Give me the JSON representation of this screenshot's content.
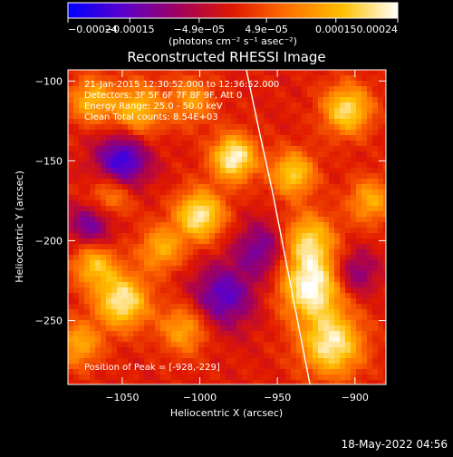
{
  "chart_data": {
    "type": "heatmap",
    "title": "Reconstructed RHESSI Image",
    "xlabel": "Heliocentric X (arcsec)",
    "ylabel": "Heliocentric Y (arcsec)",
    "xlim": [
      -1085,
      -880
    ],
    "ylim": [
      -290,
      -93
    ],
    "x_ticks": [
      -1050,
      -1000,
      -950,
      -900
    ],
    "x_tick_labels": [
      "−1050",
      "−1000",
      "−950",
      "−900"
    ],
    "y_ticks": [
      -100,
      -150,
      -200,
      -250
    ],
    "y_tick_labels": [
      "−100",
      "−150",
      "−200",
      "−250"
    ],
    "colorbar": {
      "range": [
        -0.00024,
        0.00024
      ],
      "tick_values": [
        -0.00024,
        -0.00015,
        -4.9e-05,
        4.9e-05,
        0.00015,
        0.00024
      ],
      "tick_labels": [
        "−0.00024",
        "−0.00015",
        "−4.9e−05",
        "4.9e−05",
        "0.00015",
        "0.00024"
      ],
      "units": "(photons cm⁻² s⁻¹ asec⁻²)",
      "colors": [
        "#0000ff",
        "#5a00cc",
        "#a00060",
        "#e01800",
        "#ff7000",
        "#ffc000",
        "#ffffff"
      ]
    },
    "annotations": [
      "21-Jan-2015 12:30:52.000 to 12:36:52.000",
      "Detectors: 3F 5F 6F 7F 8F 9F, Att 0",
      "Energy Range: 25.0 - 50.0 keV",
      "Clean      Total counts: 8.54E+03"
    ],
    "peak_label": "Position of Peak = [-928,-229]",
    "peak": [
      -928,
      -229
    ],
    "limb_curve": [
      [
        -970,
        -93
      ],
      [
        -962,
        -130
      ],
      [
        -953,
        -170
      ],
      [
        -945,
        -210
      ],
      [
        -937,
        -250
      ],
      [
        -929,
        -290
      ]
    ],
    "sources": [
      {
        "x": -978,
        "y": -148,
        "a": 0.00024,
        "s": 10
      },
      {
        "x": -1000,
        "y": -184,
        "a": 0.00022,
        "s": 11
      },
      {
        "x": -940,
        "y": -158,
        "a": 0.00018,
        "s": 10
      },
      {
        "x": -905,
        "y": -118,
        "a": 0.0002,
        "s": 11
      },
      {
        "x": -928,
        "y": -229,
        "a": 0.00024,
        "s": 14
      },
      {
        "x": -930,
        "y": -200,
        "a": 0.00018,
        "s": 12
      },
      {
        "x": -915,
        "y": -265,
        "a": 0.00022,
        "s": 14
      },
      {
        "x": -1050,
        "y": -238,
        "a": 0.00022,
        "s": 12
      },
      {
        "x": -1068,
        "y": -215,
        "a": 0.00016,
        "s": 10
      },
      {
        "x": -1025,
        "y": -205,
        "a": 0.00014,
        "s": 10
      },
      {
        "x": -1040,
        "y": -118,
        "a": 0.00016,
        "s": 12
      },
      {
        "x": -1070,
        "y": -112,
        "a": 0.00015,
        "s": 10
      },
      {
        "x": -1058,
        "y": -172,
        "a": 0.00012,
        "s": 10
      },
      {
        "x": -1078,
        "y": -265,
        "a": 0.00014,
        "s": 10
      },
      {
        "x": -1010,
        "y": -255,
        "a": 0.00014,
        "s": 11
      },
      {
        "x": -1005,
        "y": -112,
        "a": 0.00012,
        "s": 10
      },
      {
        "x": -890,
        "y": -175,
        "a": 0.00014,
        "s": 10
      },
      {
        "x": -1050,
        "y": -150,
        "a": -0.0002,
        "s": 12
      },
      {
        "x": -1070,
        "y": -190,
        "a": -0.00014,
        "s": 10
      },
      {
        "x": -985,
        "y": -235,
        "a": -0.00016,
        "s": 14
      },
      {
        "x": -960,
        "y": -205,
        "a": -0.00013,
        "s": 12
      },
      {
        "x": -900,
        "y": -220,
        "a": -0.00012,
        "s": 10
      }
    ]
  },
  "timestamp": "18-May-2022 04:56"
}
